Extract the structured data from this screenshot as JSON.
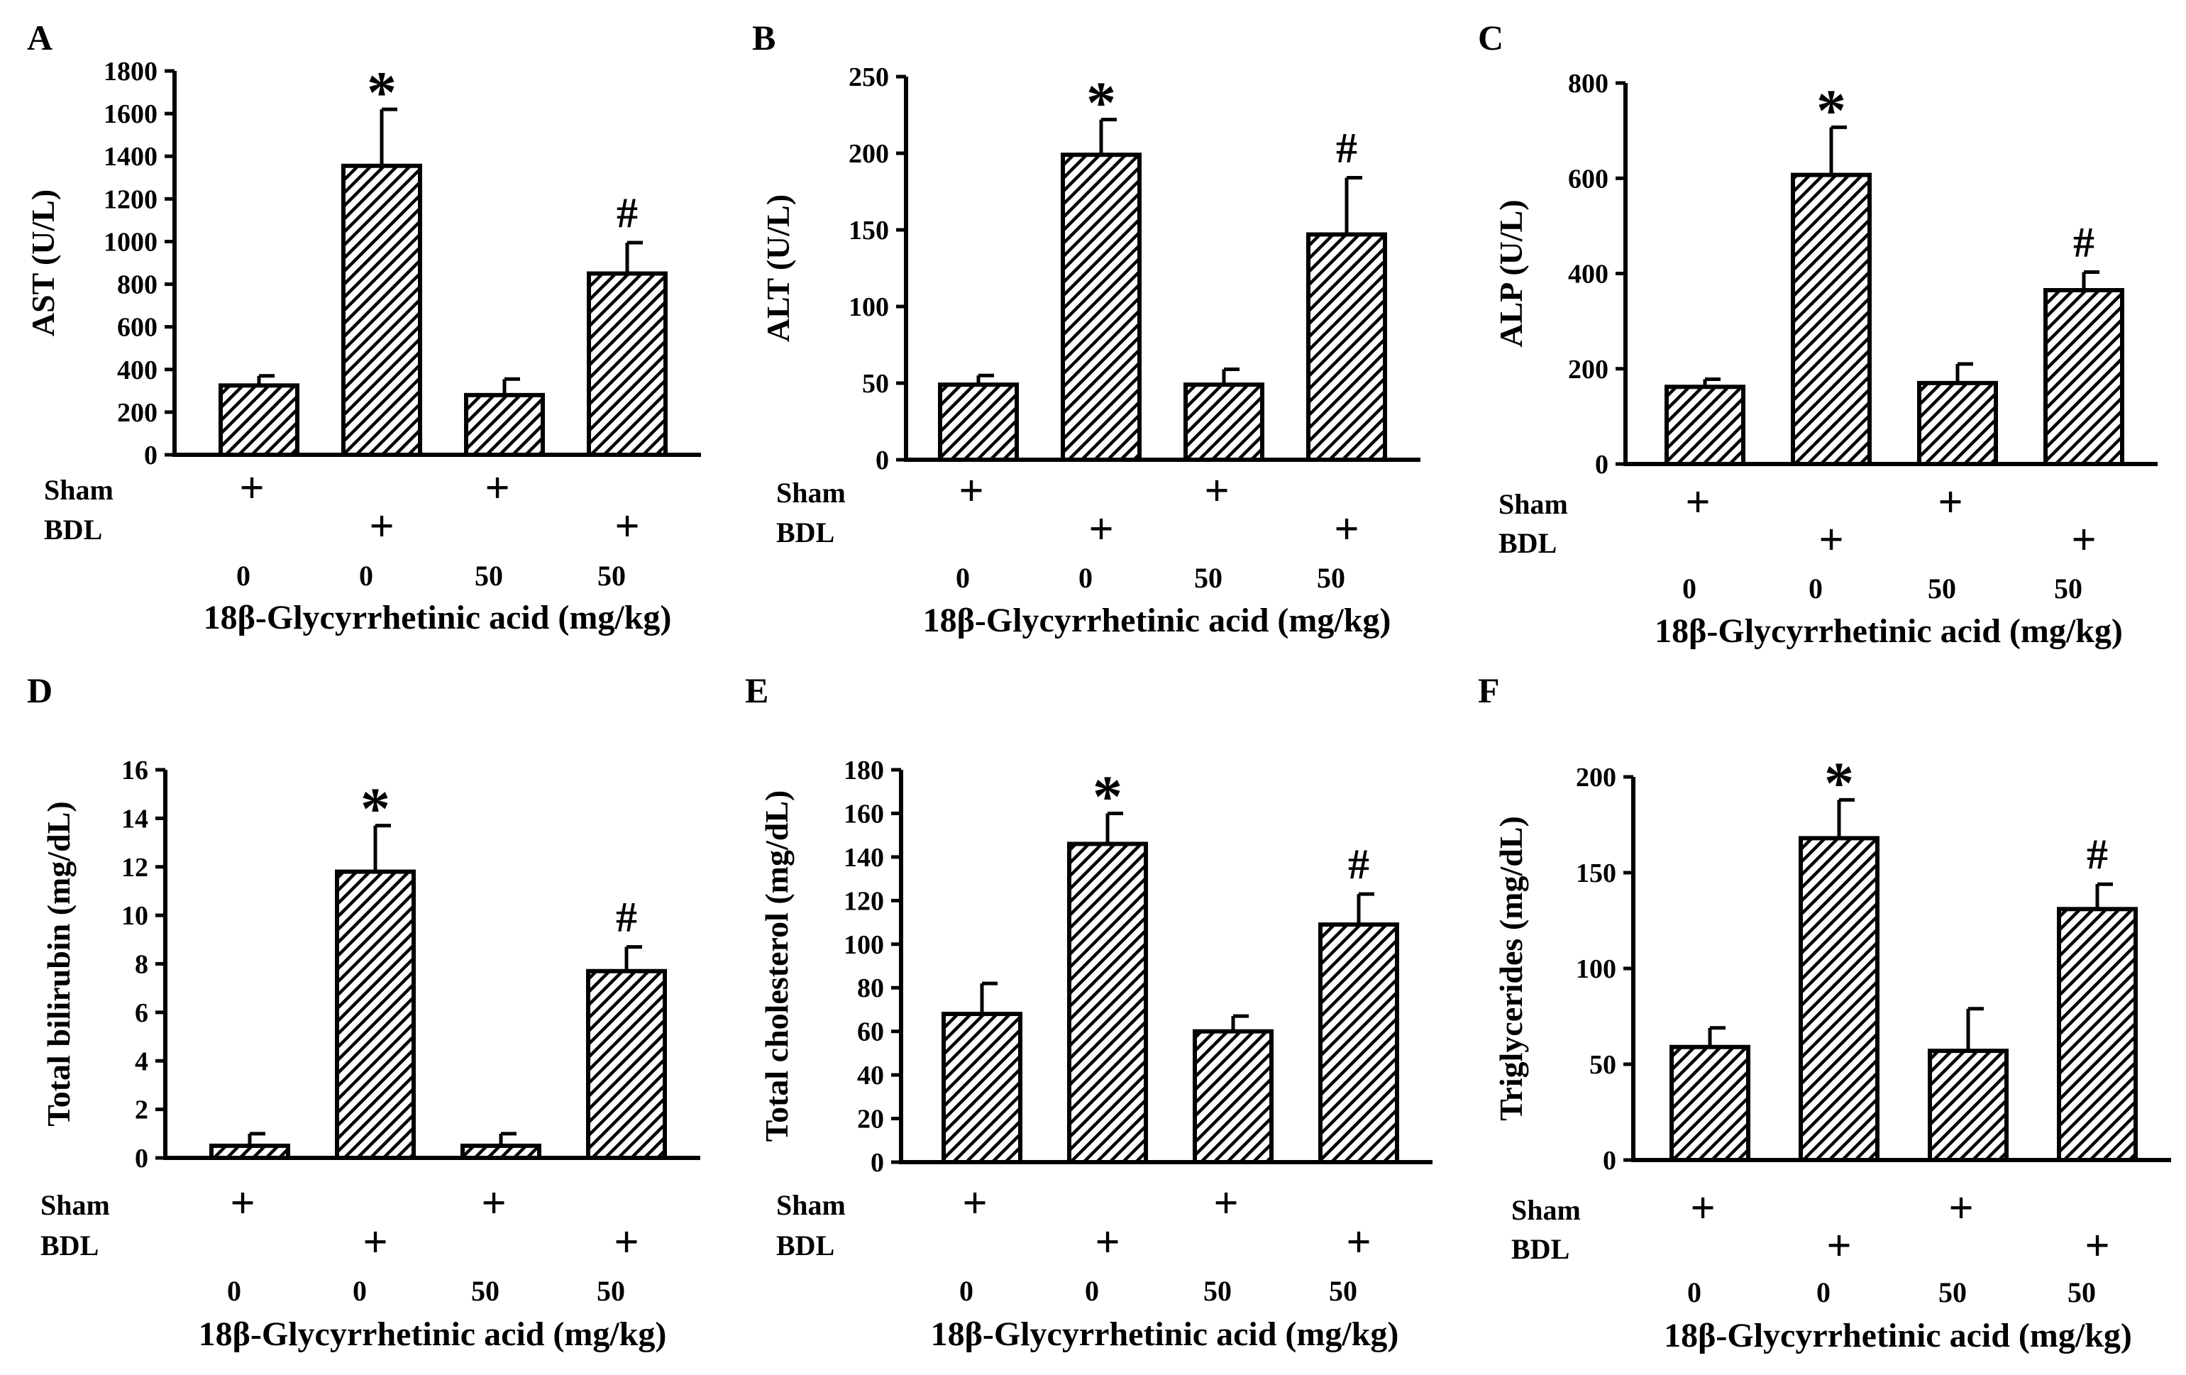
{
  "chart_data": [
    {
      "panel_letter": "A",
      "type": "bar",
      "ylabel": "AST (U/L)",
      "xlabel": "18β-Glycyrrhetinic acid (mg/kg)",
      "ylim": [
        0,
        1800
      ],
      "yticks": [
        0,
        200,
        400,
        600,
        800,
        1000,
        1200,
        1400,
        1600,
        1800
      ],
      "values": [
        325,
        1355,
        280,
        850
      ],
      "errors": [
        45,
        265,
        75,
        145
      ],
      "markers": [
        "",
        "*",
        "",
        "#"
      ],
      "sham": [
        "+",
        "",
        "+",
        ""
      ],
      "bdl": [
        "",
        "+",
        "",
        "+"
      ],
      "dose": [
        "0",
        "0",
        "50",
        "50"
      ]
    },
    {
      "panel_letter": "B",
      "type": "bar",
      "ylabel": "ALT (U/L)",
      "xlabel": "18β-Glycyrrhetinic acid (mg/kg)",
      "ylim": [
        0,
        250
      ],
      "yticks": [
        0,
        50,
        100,
        150,
        200,
        250
      ],
      "values": [
        49,
        199,
        49,
        147
      ],
      "errors": [
        6,
        23,
        10,
        37
      ],
      "markers": [
        "",
        "*",
        "",
        "#"
      ],
      "sham": [
        "+",
        "",
        "+",
        ""
      ],
      "bdl": [
        "",
        "+",
        "",
        "+"
      ],
      "dose": [
        "0",
        "0",
        "50",
        "50"
      ]
    },
    {
      "panel_letter": "C",
      "type": "bar",
      "ylabel": "ALP (U/L)",
      "xlabel": "18β-Glycyrrhetinic acid (mg/kg)",
      "ylim": [
        0,
        800
      ],
      "yticks": [
        0,
        200,
        400,
        600,
        800
      ],
      "values": [
        162,
        607,
        170,
        365
      ],
      "errors": [
        16,
        100,
        40,
        38
      ],
      "markers": [
        "",
        "*",
        "",
        "#"
      ],
      "sham": [
        "+",
        "",
        "+",
        ""
      ],
      "bdl": [
        "",
        "+",
        "",
        "+"
      ],
      "dose": [
        "0",
        "0",
        "50",
        "50"
      ]
    },
    {
      "panel_letter": "D",
      "type": "bar",
      "ylabel": "Total bilirubin (mg/dL)",
      "xlabel": "18β-Glycyrrhetinic acid (mg/kg)",
      "ylim": [
        0,
        16
      ],
      "yticks": [
        0,
        2,
        4,
        6,
        8,
        10,
        12,
        14,
        16
      ],
      "values": [
        0.5,
        11.8,
        0.5,
        7.7
      ],
      "errors": [
        0.5,
        1.9,
        0.5,
        1.0
      ],
      "markers": [
        "",
        "*",
        "",
        "#"
      ],
      "sham": [
        "+",
        "",
        "+",
        ""
      ],
      "bdl": [
        "",
        "+",
        "",
        "+"
      ],
      "dose": [
        "0",
        "0",
        "50",
        "50"
      ]
    },
    {
      "panel_letter": "E",
      "type": "bar",
      "ylabel": "Total cholesterol (mg/dL)",
      "xlabel": "18β-Glycyrrhetinic acid (mg/kg)",
      "ylim": [
        0,
        180
      ],
      "yticks": [
        0,
        20,
        40,
        60,
        80,
        100,
        120,
        140,
        160,
        180
      ],
      "values": [
        68,
        146,
        60,
        109
      ],
      "errors": [
        14,
        14,
        7,
        14
      ],
      "markers": [
        "",
        "*",
        "",
        "#"
      ],
      "sham": [
        "+",
        "",
        "+",
        ""
      ],
      "bdl": [
        "",
        "+",
        "",
        "+"
      ],
      "dose": [
        "0",
        "0",
        "50",
        "50"
      ]
    },
    {
      "panel_letter": "F",
      "type": "bar",
      "ylabel": "Triglycerides (mg/dL)",
      "xlabel": "18β-Glycyrrhetinic acid (mg/kg)",
      "ylim": [
        0,
        200
      ],
      "yticks": [
        0,
        50,
        100,
        150,
        200
      ],
      "values": [
        59,
        168,
        57,
        131
      ],
      "errors": [
        10,
        20,
        22,
        13
      ],
      "markers": [
        "",
        "*",
        "",
        "#"
      ],
      "sham": [
        "+",
        "",
        "+",
        ""
      ],
      "bdl": [
        "",
        "+",
        "",
        "+"
      ],
      "dose": [
        "0",
        "0",
        "50",
        "50"
      ]
    }
  ],
  "row_labels": {
    "sham": "Sham",
    "bdl": "BDL"
  }
}
